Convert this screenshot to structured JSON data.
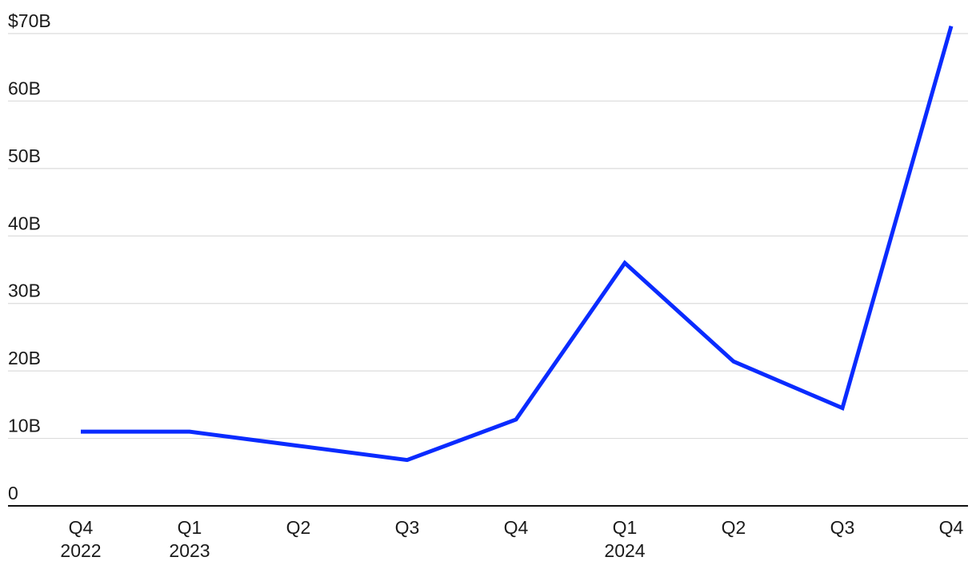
{
  "chart_data": {
    "type": "line",
    "categories": [
      "Q4",
      "Q1",
      "Q2",
      "Q3",
      "Q4",
      "Q1",
      "Q2",
      "Q3",
      "Q4"
    ],
    "category_years": [
      "2022",
      "2023",
      null,
      null,
      null,
      "2024",
      null,
      null,
      null
    ],
    "series": [
      {
        "color": "#0a2bff",
        "values": [
          11.0,
          11.0,
          8.9,
          6.8,
          12.8,
          36.0,
          21.4,
          14.5,
          71.1
        ]
      }
    ],
    "ylim": [
      0,
      70
    ],
    "yticks": [
      0,
      {
        "value": 10,
        "label": "10B"
      },
      {
        "value": 20,
        "label": "20B"
      },
      {
        "value": 30,
        "label": "30B"
      },
      {
        "value": 40,
        "label": "40B"
      },
      {
        "value": 50,
        "label": "50B"
      },
      {
        "value": 60,
        "label": "60B"
      },
      {
        "value": 70,
        "label": "$70B"
      }
    ],
    "grid": true
  }
}
